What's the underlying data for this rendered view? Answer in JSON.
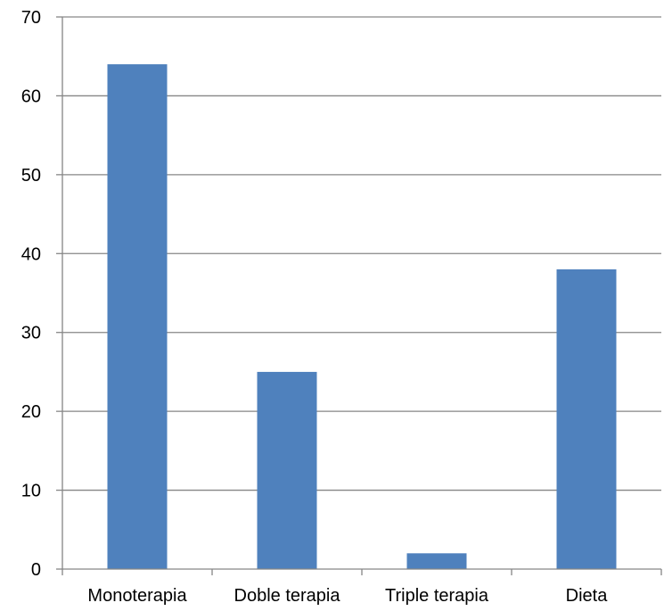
{
  "chart_data": {
    "type": "bar",
    "categories": [
      "Monoterapia",
      "Doble terapia",
      "Triple terapia",
      "Dieta"
    ],
    "values": [
      64,
      25,
      2,
      38
    ],
    "title": "",
    "xlabel": "",
    "ylabel": "",
    "ylim": [
      0,
      70
    ],
    "yticks": [
      0,
      10,
      20,
      30,
      40,
      50,
      60,
      70
    ],
    "ytick_labels": [
      "0",
      "10",
      "20",
      "30",
      "40",
      "50",
      "60",
      "70"
    ],
    "grid": true,
    "legend": "none",
    "colors": {
      "bar": "#4F81BD",
      "grid": "#868686",
      "axis": "#868686"
    }
  }
}
